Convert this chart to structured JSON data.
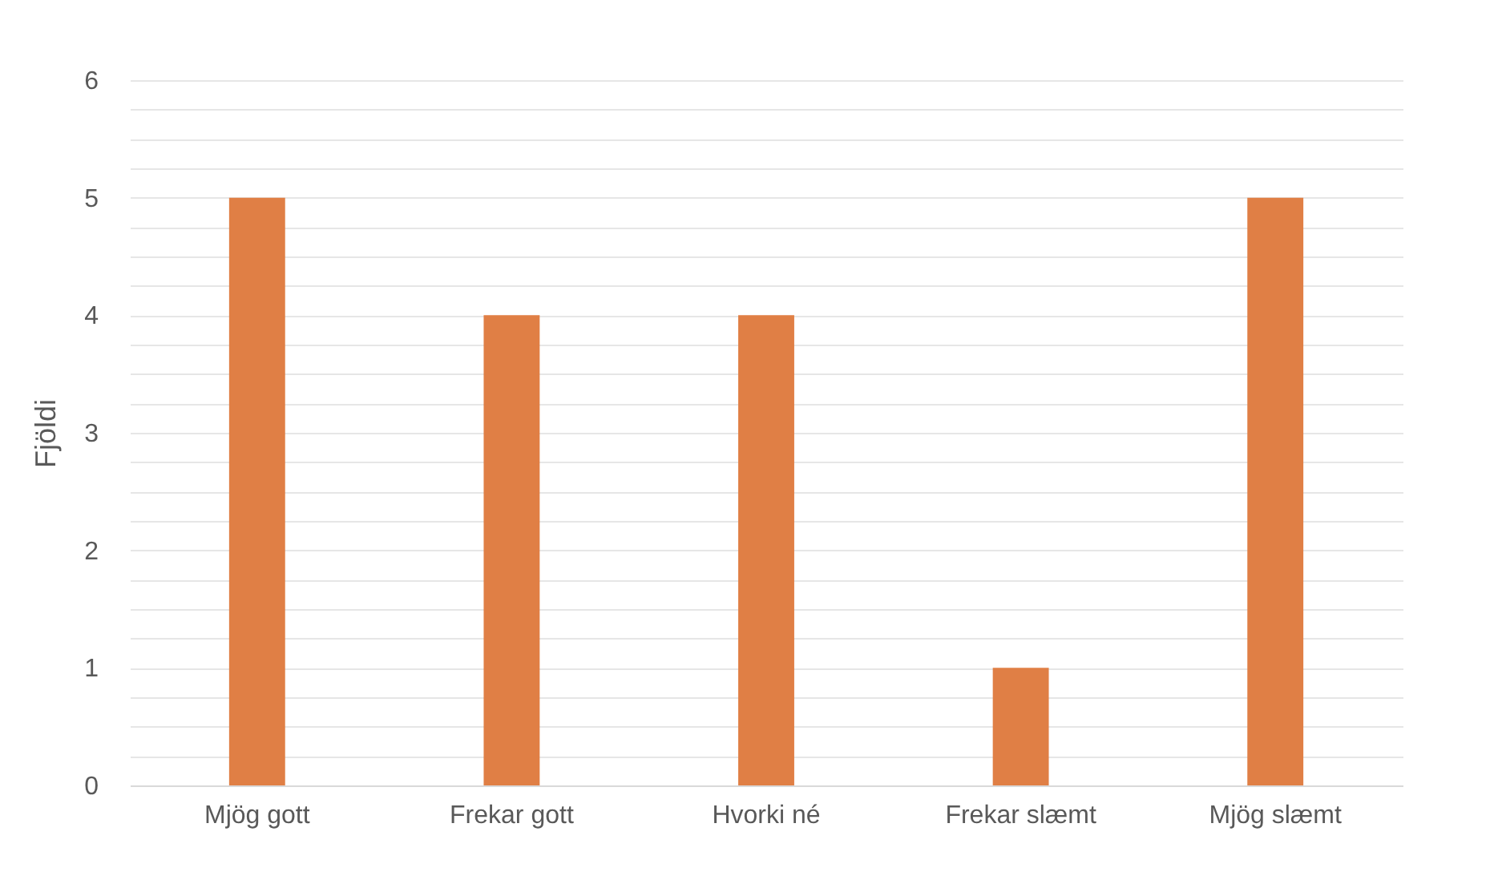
{
  "chart_data": {
    "type": "bar",
    "ylabel": "Fjöldi",
    "categories": [
      "Mjög gott",
      "Frekar gott",
      "Hvorki né",
      "Frekar slæmt",
      "Mjög slæmt"
    ],
    "values": [
      5,
      4,
      4,
      1,
      5
    ],
    "color": "#e07f45",
    "ylim": [
      0,
      6
    ],
    "yticks": [
      0,
      {
        "value": 0.25,
        "label": null
      },
      {
        "value": 0.5,
        "label": null
      },
      {
        "value": 0.75,
        "label": null
      },
      1,
      {
        "value": 1.25,
        "label": null
      },
      {
        "value": 1.5,
        "label": null
      },
      {
        "value": 1.75,
        "label": null
      },
      2,
      {
        "value": 2.25,
        "label": null
      },
      {
        "value": 2.5,
        "label": null
      },
      {
        "value": 2.75,
        "label": null
      },
      3,
      {
        "value": 3.25,
        "label": null
      },
      {
        "value": 3.5,
        "label": null
      },
      {
        "value": 3.75,
        "label": null
      },
      4,
      {
        "value": 4.25,
        "label": null
      },
      {
        "value": 4.5,
        "label": null
      },
      {
        "value": 4.75,
        "label": null
      },
      5,
      {
        "value": 5.25,
        "label": null
      },
      {
        "value": 5.5,
        "label": null
      },
      {
        "value": 5.75,
        "label": null
      },
      6
    ],
    "grid": "y"
  }
}
